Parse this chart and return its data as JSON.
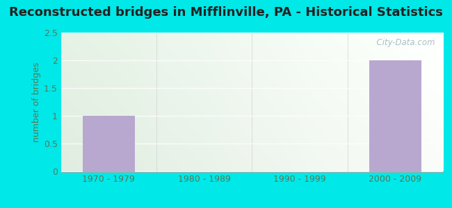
{
  "title": "Reconstructed bridges in Mifflinville, PA - Historical Statistics",
  "categories": [
    "1970 - 1979",
    "1980 - 1989",
    "1990 - 1999",
    "2000 - 2009"
  ],
  "values": [
    1,
    0,
    0,
    2
  ],
  "bar_color": "#b8a8d0",
  "ylabel": "number of bridges",
  "ylim": [
    0,
    2.5
  ],
  "yticks": [
    0,
    0.5,
    1,
    1.5,
    2,
    2.5
  ],
  "bg_outer": "#00e8e8",
  "title_fontsize": 13,
  "ylabel_fontsize": 9,
  "tick_fontsize": 9,
  "tick_color": "#557755",
  "watermark": "  City-Data.com",
  "grid_color": "#e0e8e0",
  "plot_bg_left": "#ddeedd",
  "plot_bg_right": "#eef8f8"
}
